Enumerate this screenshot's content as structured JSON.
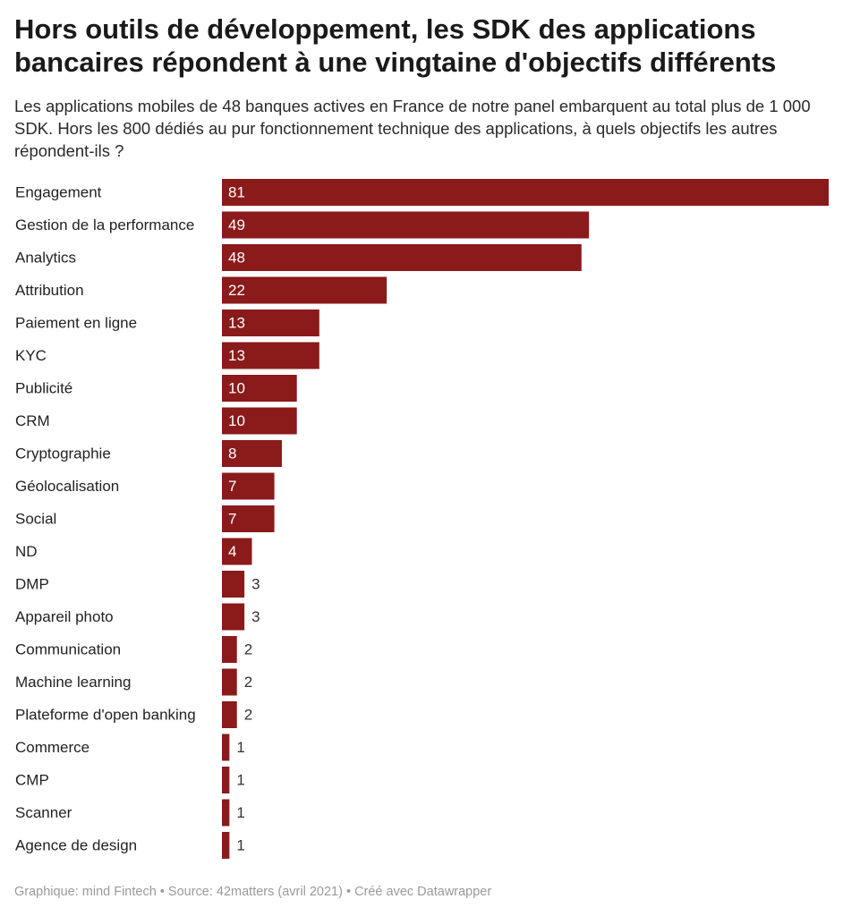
{
  "header": {
    "title": "Hors outils de développement, les SDK des applications bancaires répondent à une vingtaine d'objectifs différents",
    "subtitle": "Les applications mobiles de 48 banques actives en France de notre panel embarquent au total plus de 1 000 SDK. Hors les 800 dédiés au pur fonctionnement technique des applications, à quels objectifs les autres répondent-ils ?"
  },
  "footer": {
    "credit": "Graphique: mind Fintech • Source: 42matters (avril 2021) • Créé avec Datawrapper"
  },
  "colors": {
    "bar": "#8b1a1a",
    "label_inside": "#ffffff",
    "label_outside": "#333333",
    "category_text": "#222222"
  },
  "chart_data": {
    "type": "bar",
    "orientation": "horizontal",
    "categories": [
      "Engagement",
      "Gestion de la performance",
      "Analytics",
      "Attribution",
      "Paiement en ligne",
      "KYC",
      "Publicité",
      "CRM",
      "Cryptographie",
      "Géolocalisation",
      "Social",
      "ND",
      "DMP",
      "Appareil photo",
      "Communication",
      "Machine learning",
      "Plateforme d'open banking",
      "Commerce",
      "CMP",
      "Scanner",
      "Agence de design"
    ],
    "values": [
      81,
      49,
      48,
      22,
      13,
      13,
      10,
      10,
      8,
      7,
      7,
      4,
      3,
      3,
      2,
      2,
      2,
      1,
      1,
      1,
      1
    ],
    "xlim": [
      0,
      81
    ],
    "grid": false,
    "legend": "none",
    "data_labels": true
  }
}
